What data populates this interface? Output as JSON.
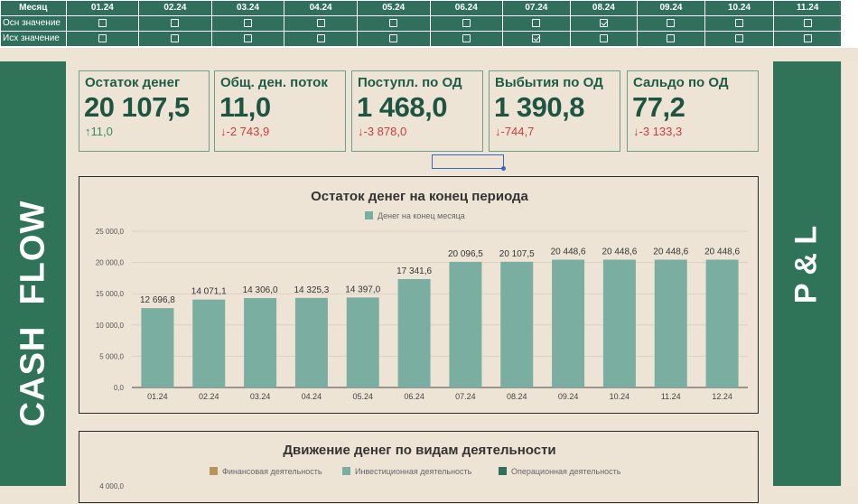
{
  "control": {
    "header_label": "Месяц",
    "months": [
      "01.24",
      "02.24",
      "03.24",
      "04.24",
      "05.24",
      "06.24",
      "07.24",
      "08.24",
      "09.24",
      "10.24",
      "11.24"
    ],
    "rows": [
      {
        "label": "Осн значение",
        "checked": [
          false,
          false,
          false,
          false,
          false,
          false,
          false,
          true,
          false,
          false,
          false
        ]
      },
      {
        "label": "Исх значение",
        "checked": [
          false,
          false,
          false,
          false,
          false,
          false,
          true,
          false,
          false,
          false,
          false
        ]
      }
    ]
  },
  "left_band_title": "CASH  FLOW",
  "mid_band_title": "P & L",
  "kpis": [
    {
      "title": "Остаток денег",
      "value": "20 107,5",
      "delta": "11,0",
      "direction": "up"
    },
    {
      "title": "Общ. ден. поток",
      "value": "11,0",
      "delta": "-2 743,9",
      "direction": "down"
    },
    {
      "title": "Поступл. по ОД",
      "value": "1 468,0",
      "delta": "-3 878,0",
      "direction": "down"
    },
    {
      "title": "Выбытия по ОД",
      "value": "1 390,8",
      "delta": "-744,7",
      "direction": "down"
    },
    {
      "title": "Сальдо по ОД",
      "value": "77,2",
      "delta": "-3 133,3",
      "direction": "down"
    }
  ],
  "arrows": {
    "up": "↑",
    "down": "↓"
  },
  "colors": {
    "accent": "#2f7359",
    "bar": "#7aaea0",
    "up": "#3a8a5e",
    "down": "#d33b36"
  },
  "chart_data": [
    {
      "type": "bar",
      "title": "Остаток денег на конец периода",
      "legend_position": "top",
      "categories": [
        "01.24",
        "02.24",
        "03.24",
        "04.24",
        "05.24",
        "06.24",
        "07.24",
        "08.24",
        "09.24",
        "10.24",
        "11.24",
        "12.24"
      ],
      "series": [
        {
          "name": "Денег на конец месяца",
          "values": [
            12696.8,
            14071.1,
            14306.0,
            14325.3,
            14397.0,
            17341.6,
            20096.5,
            20107.5,
            20448.6,
            20448.6,
            20448.6,
            20448.6
          ],
          "labels": [
            "12 696,8",
            "14 071,1",
            "14 306,0",
            "14 325,3",
            "14 397,0",
            "17 341,6",
            "20 096,5",
            "20 107,5",
            "20 448,6",
            "20 448,6",
            "20 448,6",
            "20 448,6"
          ]
        }
      ],
      "ylim": [
        0,
        25000
      ],
      "yticks": [
        0,
        5000,
        10000,
        15000,
        20000,
        25000
      ],
      "ytick_labels": [
        "0,0",
        "5 000,0",
        "10 000,0",
        "15 000,0",
        "20 000,0",
        "25 000,0"
      ],
      "grid": true
    },
    {
      "type": "bar",
      "title": "Движение денег по видам деятельности",
      "legend_position": "top",
      "series": [
        {
          "name": "Финансовая деятельность",
          "color": "#b8935a"
        },
        {
          "name": "Инвестиционная деятельность",
          "color": "#7aaea0"
        },
        {
          "name": "Операционная деятельность",
          "color": "#2f6f5b"
        }
      ],
      "ytick_labels": [
        "4 000,0"
      ]
    }
  ]
}
